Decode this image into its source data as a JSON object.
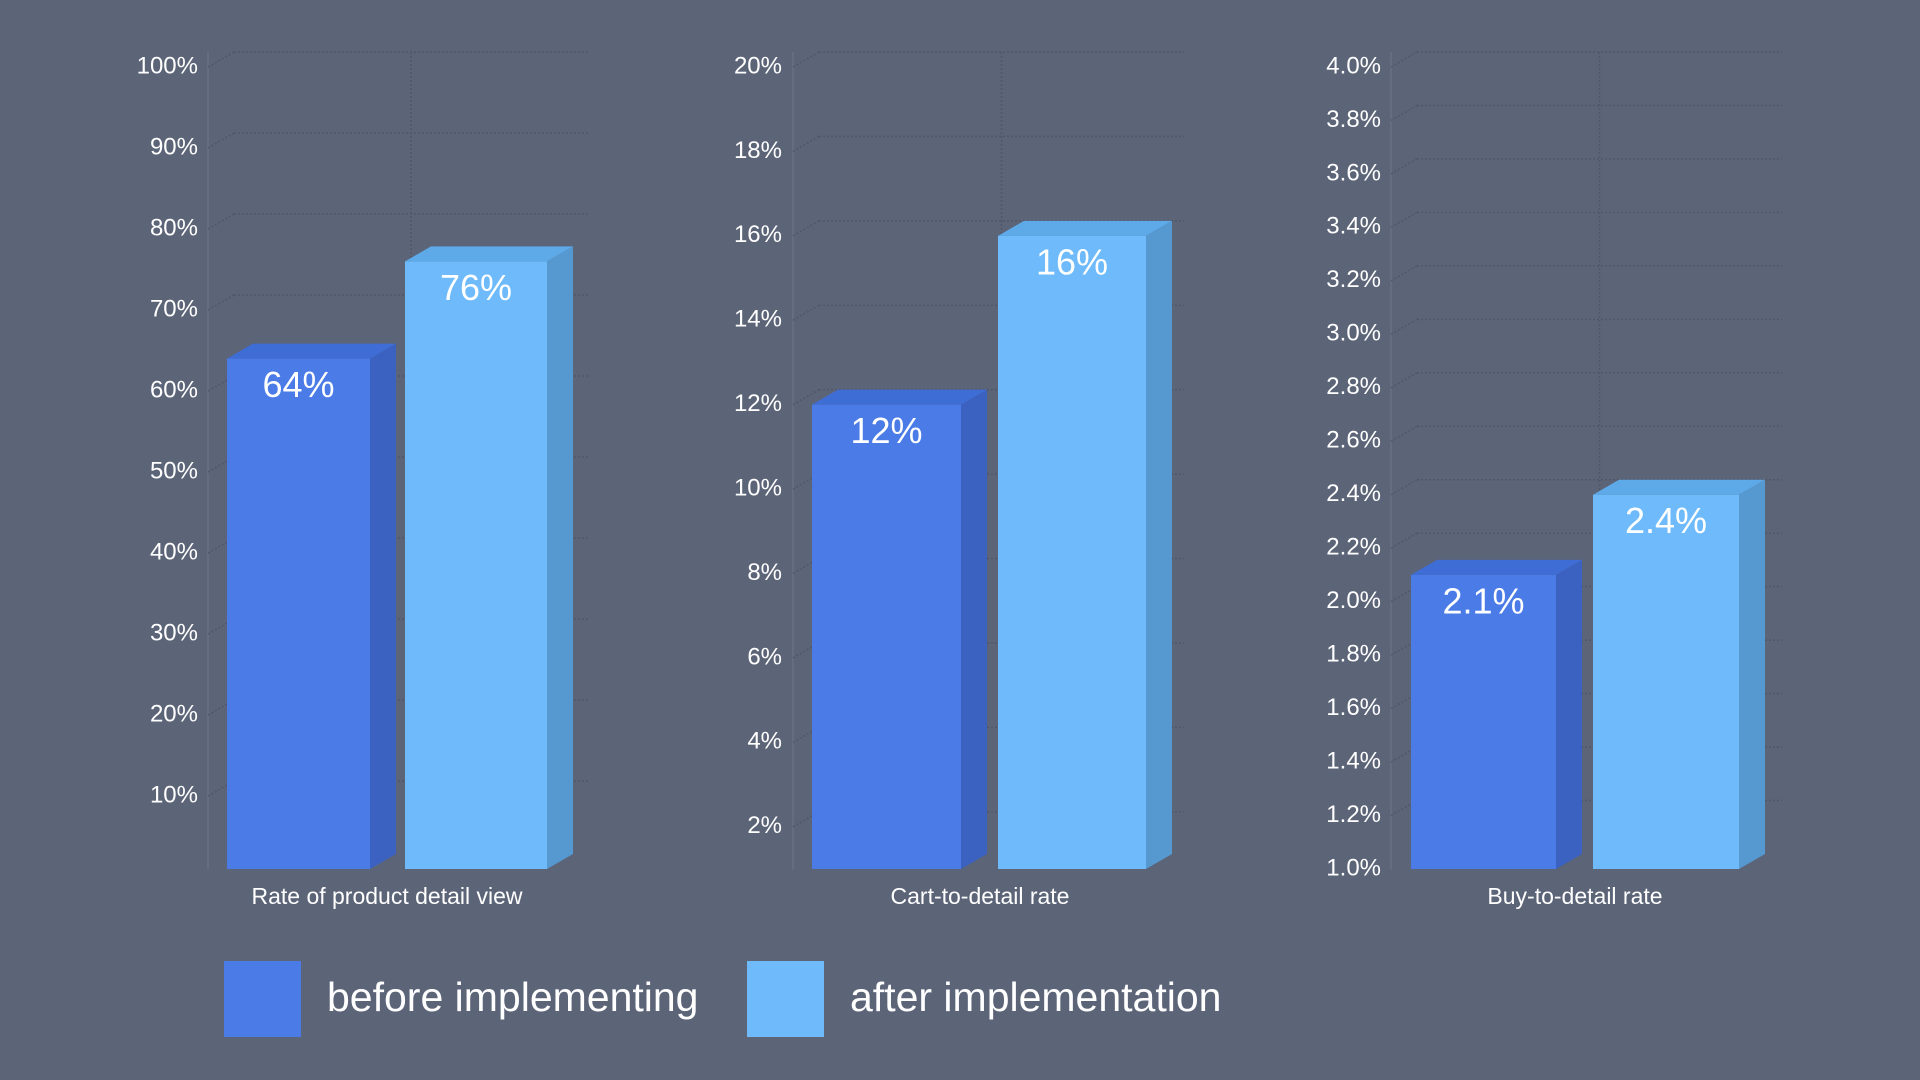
{
  "colors": {
    "background": "#5c6478",
    "before": "#4a7be6",
    "before_side": "#3b62c0",
    "before_top": "#3f6dd6",
    "after": "#6ebafa",
    "after_side": "#5699d0",
    "after_top": "#5ea9e8"
  },
  "legend": [
    {
      "label": "before implementing",
      "color": "#4a7be6"
    },
    {
      "label": "after implementation",
      "color": "#6ebafa"
    }
  ],
  "chart_data": [
    {
      "type": "bar",
      "style": "3d",
      "xlabel": "Rate of product detail view",
      "ylim": [
        1,
        100
      ],
      "ticks": [
        10,
        20,
        30,
        40,
        50,
        60,
        70,
        80,
        90,
        100
      ],
      "tick_labels": [
        "10%",
        "20%",
        "30%",
        "40%",
        "50%",
        "60%",
        "70%",
        "80%",
        "90%",
        "100%"
      ],
      "series": [
        {
          "name": "before implementing",
          "value": 64,
          "label": "64%"
        },
        {
          "name": "after implementation",
          "value": 76,
          "label": "76%"
        }
      ]
    },
    {
      "type": "bar",
      "style": "3d",
      "xlabel": "Cart-to-detail rate",
      "ylim": [
        1,
        20
      ],
      "ticks": [
        2,
        4,
        6,
        8,
        10,
        12,
        14,
        16,
        18,
        20
      ],
      "tick_labels": [
        "2%",
        "4%",
        "6%",
        "8%",
        "10%",
        "12%",
        "14%",
        "16%",
        "18%",
        "20%"
      ],
      "series": [
        {
          "name": "before implementing",
          "value": 12,
          "label": "12%"
        },
        {
          "name": "after implementation",
          "value": 16,
          "label": "16%"
        }
      ]
    },
    {
      "type": "bar",
      "style": "3d",
      "xlabel": "Buy-to-detail rate",
      "ylim": [
        1.0,
        4.0
      ],
      "ticks": [
        1.0,
        1.2,
        1.4,
        1.6,
        1.8,
        2.0,
        2.2,
        2.4,
        2.6,
        2.8,
        3.0,
        3.2,
        3.4,
        3.6,
        3.8,
        4.0
      ],
      "tick_labels": [
        "1.0%",
        "1.2%",
        "1.4%",
        "1.6%",
        "1.8%",
        "2.0%",
        "2.2%",
        "2.4%",
        "2.6%",
        "2.8%",
        "3.0%",
        "3.2%",
        "3.4%",
        "3.6%",
        "3.8%",
        "4.0%"
      ],
      "series": [
        {
          "name": "before implementing",
          "value": 2.1,
          "label": "2.1%"
        },
        {
          "name": "after implementation",
          "value": 2.4,
          "label": "2.4%"
        }
      ]
    }
  ]
}
